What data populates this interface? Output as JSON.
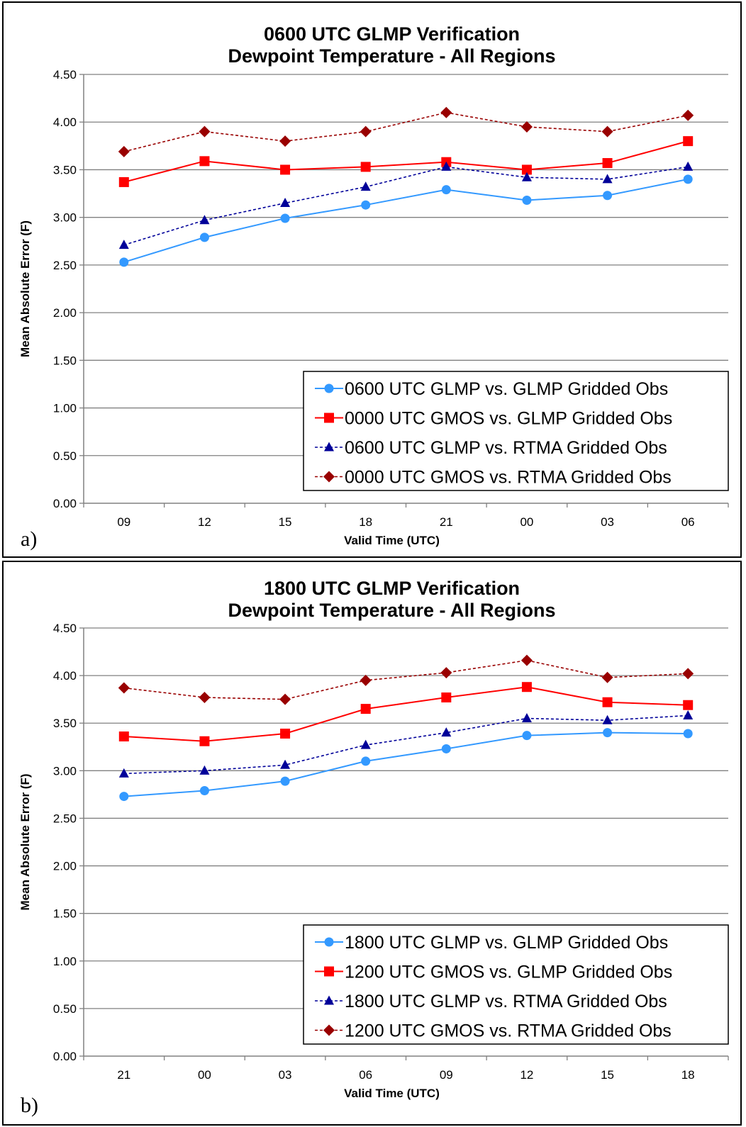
{
  "chart_data": [
    {
      "panel_label": "a)",
      "type": "line",
      "title": "0600 UTC GLMP Verification",
      "subtitle": "Dewpoint Temperature - All Regions",
      "xlabel": "Valid Time (UTC)",
      "ylabel": "Mean Absolute Error (F)",
      "categories": [
        "09",
        "12",
        "15",
        "18",
        "21",
        "00",
        "03",
        "06"
      ],
      "ylim": [
        0,
        4.5
      ],
      "yticks": [
        "0.00",
        "0.50",
        "1.00",
        "1.50",
        "2.00",
        "2.50",
        "3.00",
        "3.50",
        "4.00",
        "4.50"
      ],
      "grid": true,
      "legend_position": "bottom-right",
      "series": [
        {
          "name": "0600 UTC GLMP vs. GLMP Gridded Obs",
          "color": "#3399FF",
          "marker": "circle",
          "dashed": false,
          "values": [
            2.53,
            2.79,
            2.99,
            3.13,
            3.29,
            3.18,
            3.23,
            3.4
          ]
        },
        {
          "name": "0000 UTC GMOS vs. GLMP Gridded Obs",
          "color": "#FF0000",
          "marker": "square",
          "dashed": false,
          "values": [
            3.37,
            3.59,
            3.5,
            3.53,
            3.58,
            3.5,
            3.57,
            3.8
          ]
        },
        {
          "name": "0600 UTC GLMP vs. RTMA Gridded Obs",
          "color": "#000099",
          "marker": "triangle",
          "dashed": true,
          "values": [
            2.71,
            2.97,
            3.15,
            3.32,
            3.53,
            3.42,
            3.4,
            3.53
          ]
        },
        {
          "name": "0000 UTC GMOS vs. RTMA Gridded Obs",
          "color": "#990000",
          "marker": "diamond",
          "dashed": true,
          "values": [
            3.69,
            3.9,
            3.8,
            3.9,
            4.1,
            3.95,
            3.9,
            4.07
          ]
        }
      ]
    },
    {
      "panel_label": "b)",
      "type": "line",
      "title": "1800 UTC GLMP Verification",
      "subtitle": "Dewpoint Temperature - All Regions",
      "xlabel": "Valid Time (UTC)",
      "ylabel": "Mean Absolute Error (F)",
      "categories": [
        "21",
        "00",
        "03",
        "06",
        "09",
        "12",
        "15",
        "18"
      ],
      "ylim": [
        0,
        4.5
      ],
      "yticks": [
        "0.00",
        "0.50",
        "1.00",
        "1.50",
        "2.00",
        "2.50",
        "3.00",
        "3.50",
        "4.00",
        "4.50"
      ],
      "grid": true,
      "legend_position": "bottom-right",
      "series": [
        {
          "name": "1800 UTC GLMP vs. GLMP Gridded Obs",
          "color": "#3399FF",
          "marker": "circle",
          "dashed": false,
          "values": [
            2.73,
            2.79,
            2.89,
            3.1,
            3.23,
            3.37,
            3.4,
            3.39
          ]
        },
        {
          "name": "1200 UTC GMOS vs. GLMP Gridded Obs",
          "color": "#FF0000",
          "marker": "square",
          "dashed": false,
          "values": [
            3.36,
            3.31,
            3.39,
            3.65,
            3.77,
            3.88,
            3.72,
            3.69
          ]
        },
        {
          "name": "1800 UTC GLMP vs. RTMA Gridded Obs",
          "color": "#000099",
          "marker": "triangle",
          "dashed": true,
          "values": [
            2.97,
            3.0,
            3.06,
            3.27,
            3.4,
            3.55,
            3.53,
            3.58
          ]
        },
        {
          "name": "1200 UTC GMOS vs. RTMA Gridded Obs",
          "color": "#990000",
          "marker": "diamond",
          "dashed": true,
          "values": [
            3.87,
            3.77,
            3.75,
            3.95,
            4.03,
            4.16,
            3.98,
            4.02
          ]
        }
      ]
    }
  ]
}
